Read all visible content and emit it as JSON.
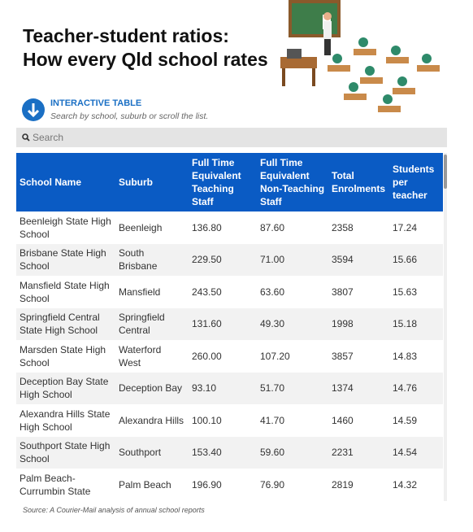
{
  "header": {
    "title": [
      "Teacher-student ratios:",
      "How every Qld school rates"
    ]
  },
  "intro": {
    "label": "INTERACTIVE TABLE",
    "text": "Search by school, suburb or scroll the list."
  },
  "search": {
    "placeholder": "Search"
  },
  "table": {
    "columns": [
      "School Name",
      "Suburb",
      "Full Time Equivalent Teaching Staff",
      "Full Time Equivalent Non-Teaching Staff",
      "Total Enrolments",
      "Students per teacher"
    ],
    "rows": [
      [
        "Beenleigh State High School",
        "Beenleigh",
        "136.80",
        "87.60",
        "2358",
        "17.24"
      ],
      [
        "Brisbane State High School",
        "South Brisbane",
        "229.50",
        "71.00",
        "3594",
        "15.66"
      ],
      [
        "Mansfield State High School",
        "Mansfield",
        "243.50",
        "63.60",
        "3807",
        "15.63"
      ],
      [
        "Springfield Central State High School",
        "Springfield Central",
        "131.60",
        "49.30",
        "1998",
        "15.18"
      ],
      [
        "Marsden State High School",
        "Waterford West",
        "260.00",
        "107.20",
        "3857",
        "14.83"
      ],
      [
        "Deception Bay State High School",
        "Deception Bay",
        "93.10",
        "51.70",
        "1374",
        "14.76"
      ],
      [
        "Alexandra Hills State High School",
        "Alexandra Hills",
        "100.10",
        "41.70",
        "1460",
        "14.59"
      ],
      [
        "Southport State High School",
        "Southport",
        "153.40",
        "59.60",
        "2231",
        "14.54"
      ],
      [
        "Palm Beach-Currumbin State",
        "Palm Beach",
        "196.90",
        "76.90",
        "2819",
        "14.32"
      ]
    ]
  },
  "source": "Source: A Courier-Mail analysis of annual school reports"
}
